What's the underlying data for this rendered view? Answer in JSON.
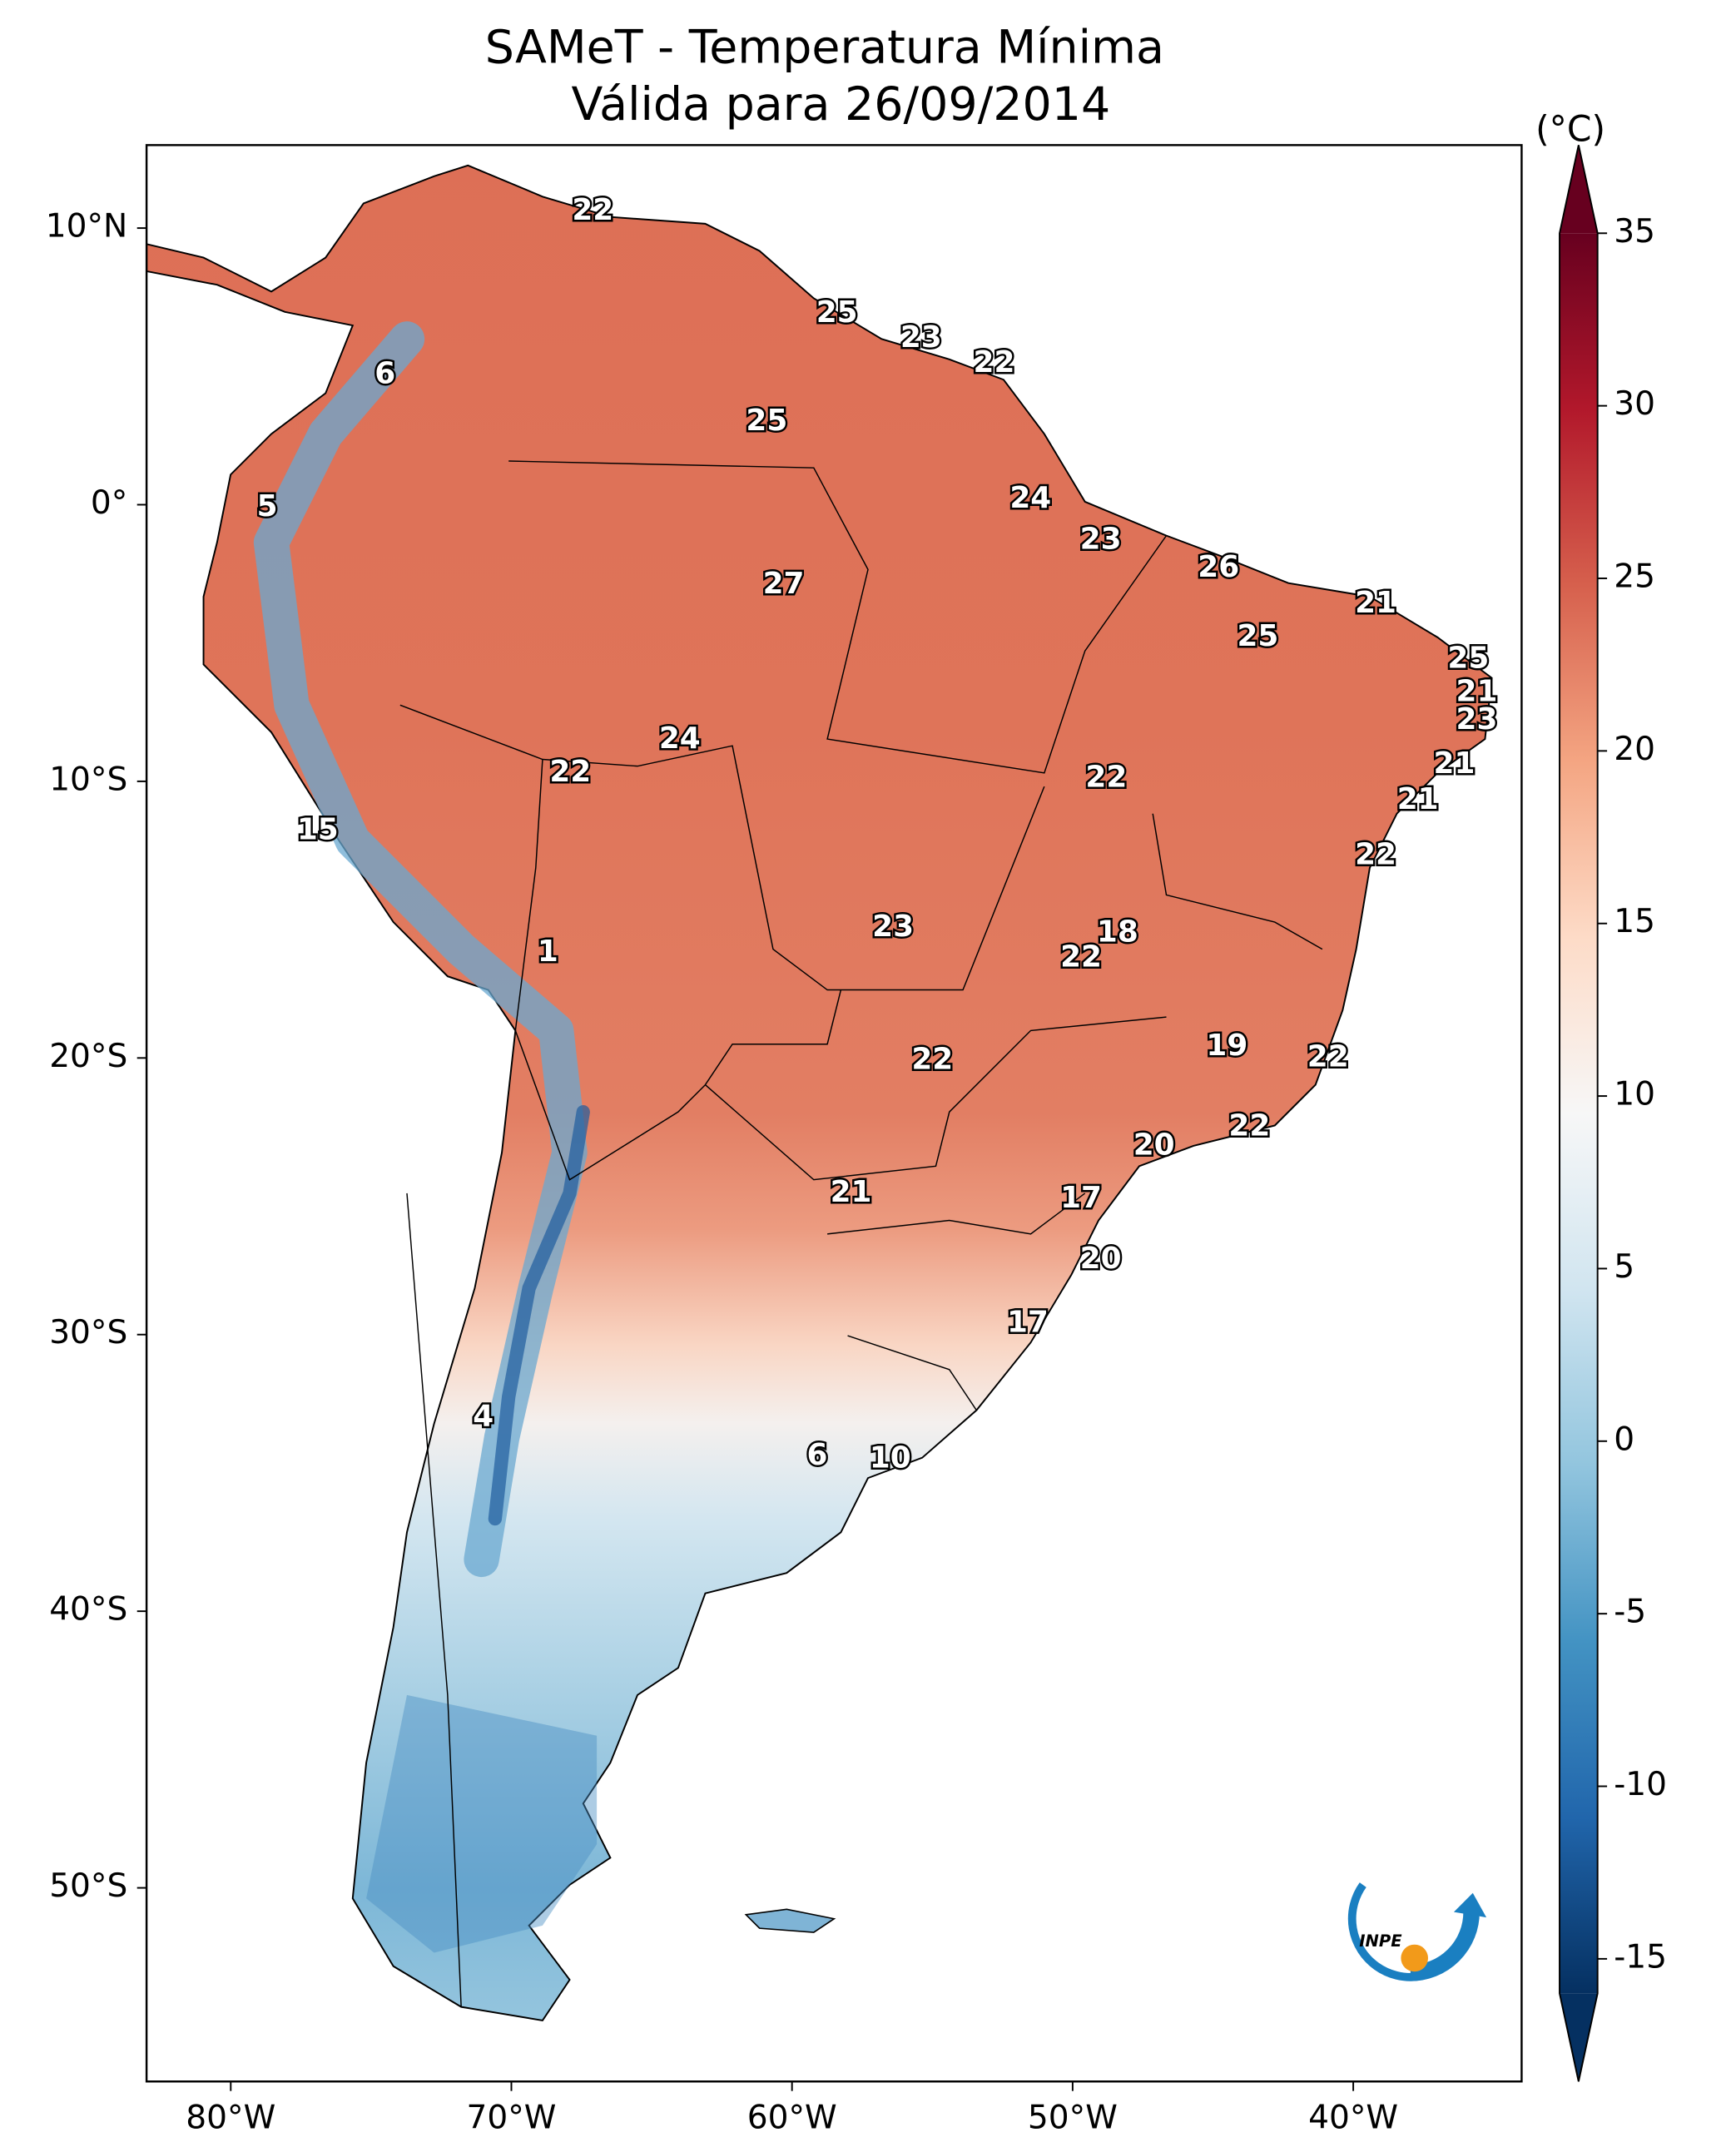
{
  "chart_data": {
    "type": "map",
    "title": "SAMeT - Temperatura Mínima",
    "subtitle": "Válida para 26/09/2014",
    "xlim": [
      -83,
      -34
    ],
    "ylim": [
      -57,
      13
    ],
    "xticks": [
      {
        "value": -80,
        "label": "80°W"
      },
      {
        "value": -70,
        "label": "70°W"
      },
      {
        "value": -60,
        "label": "60°W"
      },
      {
        "value": -50,
        "label": "50°W"
      },
      {
        "value": -40,
        "label": "40°W"
      }
    ],
    "yticks": [
      {
        "value": 10,
        "label": "10°N"
      },
      {
        "value": 0,
        "label": "0°"
      },
      {
        "value": -10,
        "label": "10°S"
      },
      {
        "value": -20,
        "label": "20°S"
      },
      {
        "value": -30,
        "label": "30°S"
      },
      {
        "value": -40,
        "label": "40°S"
      },
      {
        "value": -50,
        "label": "50°S"
      }
    ],
    "colorbar": {
      "label": "(°C)",
      "clim": [
        -16,
        35
      ],
      "ticks": [
        -15,
        -10,
        -5,
        0,
        5,
        10,
        15,
        20,
        25,
        30,
        35
      ],
      "colormap": [
        "#053061",
        "#2166ac",
        "#4393c3",
        "#92c5de",
        "#d1e5f0",
        "#f7f7f7",
        "#fddbc7",
        "#f4a582",
        "#d6604d",
        "#b2182b",
        "#67001f"
      ]
    },
    "points": [
      {
        "lon": -67.1,
        "lat": 10.6,
        "value": 22
      },
      {
        "lon": -74.5,
        "lat": 4.7,
        "value": 6
      },
      {
        "lon": -58.4,
        "lat": 6.9,
        "value": 25
      },
      {
        "lon": -55.4,
        "lat": 6.0,
        "value": 23
      },
      {
        "lon": -52.8,
        "lat": 5.1,
        "value": 22
      },
      {
        "lon": -60.9,
        "lat": 3.0,
        "value": 25
      },
      {
        "lon": -78.7,
        "lat": -0.1,
        "value": 5
      },
      {
        "lon": -51.5,
        "lat": 0.2,
        "value": 24
      },
      {
        "lon": -49.0,
        "lat": -1.3,
        "value": 23
      },
      {
        "lon": -60.3,
        "lat": -2.9,
        "value": 27
      },
      {
        "lon": -44.8,
        "lat": -2.3,
        "value": 26
      },
      {
        "lon": -39.2,
        "lat": -3.6,
        "value": 21
      },
      {
        "lon": -43.4,
        "lat": -4.8,
        "value": 25
      },
      {
        "lon": -35.9,
        "lat": -5.6,
        "value": 25
      },
      {
        "lon": -35.6,
        "lat": -6.8,
        "value": 21
      },
      {
        "lon": -35.6,
        "lat": -7.8,
        "value": 23
      },
      {
        "lon": -64.0,
        "lat": -8.5,
        "value": 24
      },
      {
        "lon": -67.9,
        "lat": -9.7,
        "value": 22
      },
      {
        "lon": -48.8,
        "lat": -9.9,
        "value": 22
      },
      {
        "lon": -36.4,
        "lat": -9.4,
        "value": 21
      },
      {
        "lon": -37.7,
        "lat": -10.7,
        "value": 21
      },
      {
        "lon": -76.9,
        "lat": -11.8,
        "value": 15
      },
      {
        "lon": -39.2,
        "lat": -12.7,
        "value": 22
      },
      {
        "lon": -56.4,
        "lat": -15.3,
        "value": 23
      },
      {
        "lon": -48.4,
        "lat": -15.5,
        "value": 18
      },
      {
        "lon": -49.7,
        "lat": -16.4,
        "value": 22
      },
      {
        "lon": -68.7,
        "lat": -16.2,
        "value": 1
      },
      {
        "lon": -44.5,
        "lat": -19.6,
        "value": 19
      },
      {
        "lon": -40.9,
        "lat": -20.0,
        "value": 22
      },
      {
        "lon": -55.0,
        "lat": -20.1,
        "value": 22
      },
      {
        "lon": -43.7,
        "lat": -22.5,
        "value": 22
      },
      {
        "lon": -47.1,
        "lat": -23.2,
        "value": 20
      },
      {
        "lon": -57.9,
        "lat": -24.9,
        "value": 21
      },
      {
        "lon": -49.7,
        "lat": -25.1,
        "value": 17
      },
      {
        "lon": -49.0,
        "lat": -27.3,
        "value": 20
      },
      {
        "lon": -51.6,
        "lat": -29.6,
        "value": 17
      },
      {
        "lon": -71.0,
        "lat": -33.0,
        "value": 4
      },
      {
        "lon": -59.1,
        "lat": -34.4,
        "value": 6
      },
      {
        "lon": -56.5,
        "lat": -34.5,
        "value": 10
      }
    ],
    "logo_text": "INPE"
  }
}
